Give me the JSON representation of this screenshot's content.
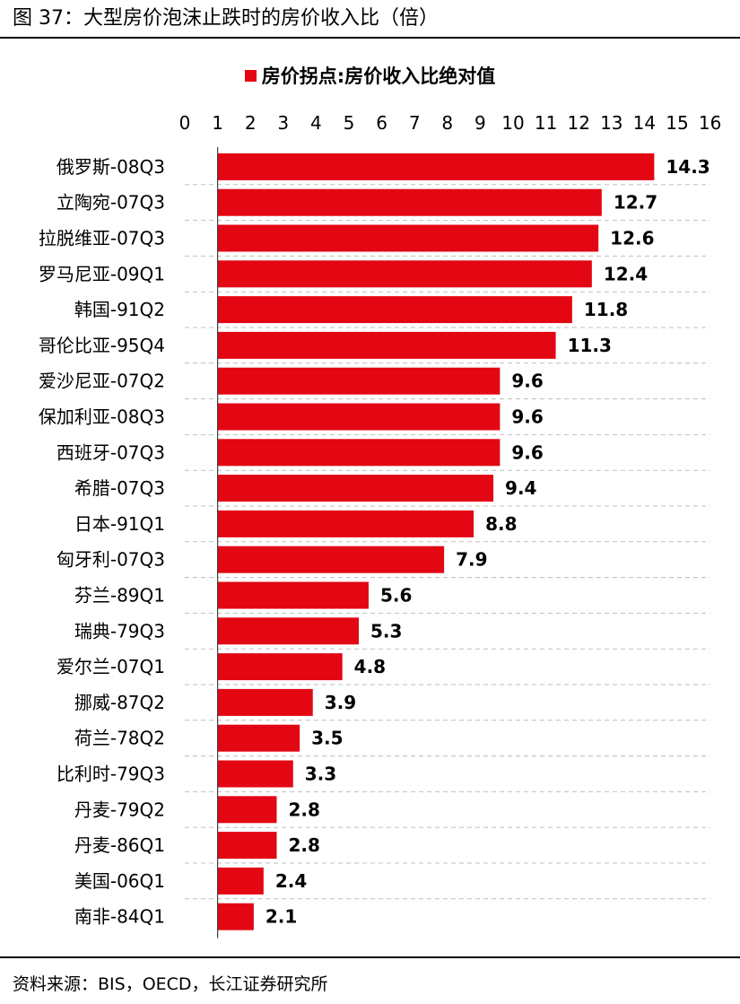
{
  "figure": {
    "title": "图 37：大型房价泡沫止跌时的房价收入比（倍）",
    "source": "资料来源：BIS，OECD，长江证券研究所"
  },
  "colors": {
    "bar": "#E30613",
    "gridline": "#BFBFBF",
    "text": "#000000"
  },
  "chart_data": {
    "type": "bar",
    "orientation": "horizontal",
    "title": "",
    "xlabel": "",
    "ylabel": "",
    "legend": {
      "entries": [
        "房价拐点:房价收入比绝对值"
      ],
      "placement": "top-center"
    },
    "xlim": [
      0,
      16
    ],
    "xticks": [
      "0",
      "1",
      "2",
      "3",
      "4",
      "5",
      "6",
      "7",
      "8",
      "9",
      "10",
      "11",
      "12",
      "13",
      "14",
      "15",
      "16"
    ],
    "xaxis_position": "top",
    "grid": "horizontal-dashed",
    "categories": [
      "俄罗斯-08Q3",
      "立陶宛-07Q3",
      "拉脱维亚-07Q3",
      "罗马尼亚-09Q1",
      "韩国-91Q2",
      "哥伦比亚-95Q4",
      "爱沙尼亚-07Q2",
      "保加利亚-08Q3",
      "西班牙-07Q3",
      "希腊-07Q3",
      "日本-91Q1",
      "匈牙利-07Q3",
      "芬兰-89Q1",
      "瑞典-79Q3",
      "爱尔兰-07Q1",
      "挪威-87Q2",
      "荷兰-78Q2",
      "比利时-79Q3",
      "丹麦-79Q2",
      "丹麦-86Q1",
      "美国-06Q1",
      "南非-84Q1"
    ],
    "series": [
      {
        "name": "房价拐点:房价收入比绝对值",
        "values": [
          14.3,
          12.7,
          12.6,
          12.4,
          11.8,
          11.3,
          9.6,
          9.6,
          9.6,
          9.4,
          8.8,
          7.9,
          5.6,
          5.3,
          4.8,
          3.9,
          3.5,
          3.3,
          2.8,
          2.8,
          2.4,
          2.1
        ],
        "labels": [
          "14.3",
          "12.7",
          "12.6",
          "12.4",
          "11.8",
          "11.3",
          "9.6",
          "9.6",
          "9.6",
          "9.4",
          "8.8",
          "7.9",
          "5.6",
          "5.3",
          "4.8",
          "3.9",
          "3.5",
          "3.3",
          "2.8",
          "2.8",
          "2.4",
          "2.1"
        ]
      }
    ]
  }
}
